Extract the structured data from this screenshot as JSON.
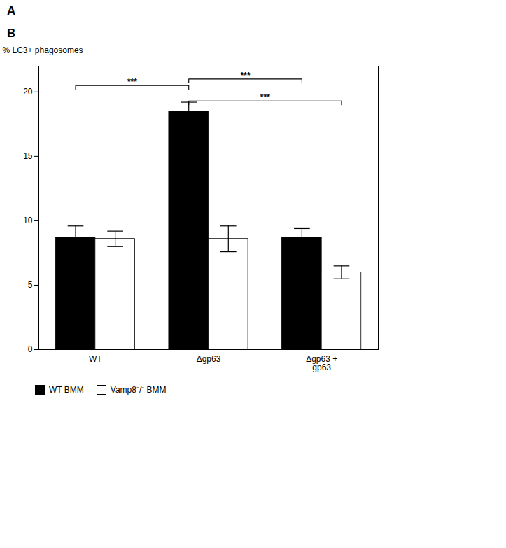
{
  "chart_data": {
    "type": "bar",
    "panel_labels": [
      "A",
      "B"
    ],
    "categories": [
      "WT",
      "Δgp63",
      "Δgp63 +\ngp63"
    ],
    "series": [
      {
        "name": "WT BMM",
        "color": "#000000",
        "values": [
          8.7,
          18.5,
          8.7
        ],
        "errors": [
          0.9,
          0.7,
          0.7
        ]
      },
      {
        "name": "Vamp8⁻/⁻ BMM",
        "color": "#ffffff",
        "values": [
          8.6,
          8.6,
          6.0
        ],
        "errors": [
          0.6,
          1.0,
          0.5
        ]
      }
    ],
    "ylabel": "% LC3+ phagosomes",
    "ylim": [
      0,
      22
    ],
    "yticks": [
      0,
      5,
      10,
      15,
      20
    ],
    "grid": false,
    "legend": "bottom",
    "annotations": [
      {
        "text": "***",
        "y": 20.5,
        "from": {
          "category": "WT",
          "series": "WT BMM"
        },
        "to": {
          "category": "Δgp63",
          "series": "WT BMM"
        }
      },
      {
        "text": "***",
        "y": 21.0,
        "from": {
          "category": "Δgp63",
          "series": "WT BMM"
        },
        "to": {
          "category": "Δgp63 +\ngp63",
          "series": "WT BMM"
        }
      },
      {
        "text": "***",
        "y": 19.3,
        "from": {
          "category": "Δgp63",
          "series": "WT BMM"
        },
        "to": {
          "category": "Δgp63 +\ngp63",
          "series": "Vamp8⁻/⁻ BMM"
        }
      }
    ]
  }
}
